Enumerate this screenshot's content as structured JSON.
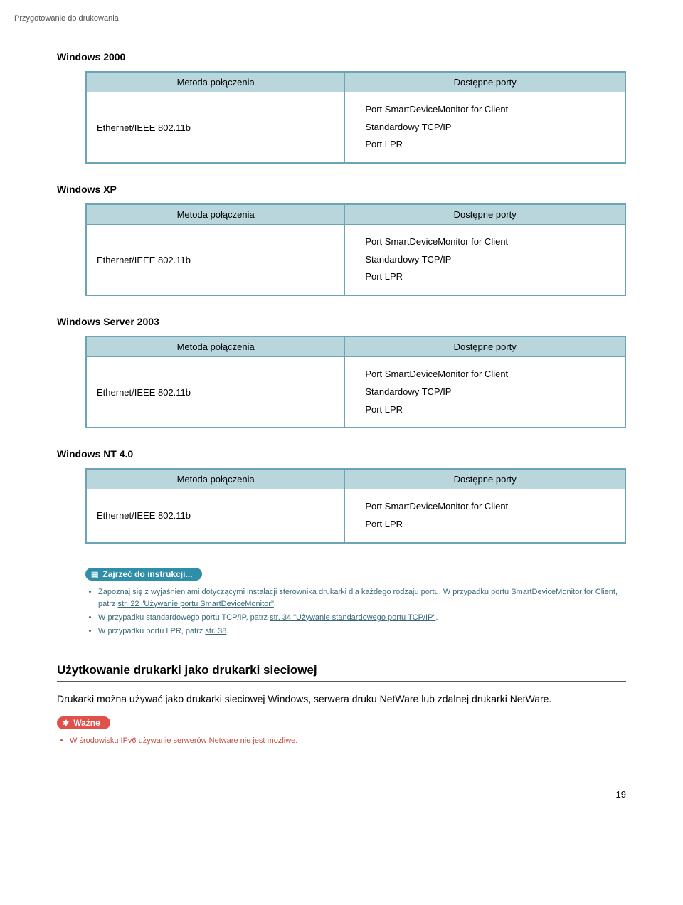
{
  "breadcrumb": "Przygotowanie do drukowania",
  "tables": [
    {
      "os": "Windows 2000",
      "col_method": "Metoda połączenia",
      "col_ports": "Dostępne porty",
      "method": "Ethernet/IEEE 802.11b",
      "ports": [
        "Port SmartDeviceMonitor for Client",
        "Standardowy TCP/IP",
        "Port LPR"
      ]
    },
    {
      "os": "Windows XP",
      "col_method": "Metoda połączenia",
      "col_ports": "Dostępne porty",
      "method": "Ethernet/IEEE 802.11b",
      "ports": [
        "Port SmartDeviceMonitor for Client",
        "Standardowy TCP/IP",
        "Port LPR"
      ]
    },
    {
      "os": "Windows Server 2003",
      "col_method": "Metoda połączenia",
      "col_ports": "Dostępne porty",
      "method": "Ethernet/IEEE 802.11b",
      "ports": [
        "Port SmartDeviceMonitor for Client",
        "Standardowy TCP/IP",
        "Port LPR"
      ]
    },
    {
      "os": "Windows NT 4.0",
      "col_method": "Metoda połączenia",
      "col_ports": "Dostępne porty",
      "method": "Ethernet/IEEE 802.11b",
      "ports": [
        "Port SmartDeviceMonitor for Client",
        "Port LPR"
      ]
    }
  ],
  "reference": {
    "badge": "Zajrzeć do instrukcji...",
    "items": [
      {
        "prefix": "Zapoznaj się z wyjaśnieniami dotyczącymi instalacji sterownika drukarki dla każdego rodzaju portu. W przypadku portu SmartDeviceMonitor for Client, patrz ",
        "link": "str. 22 \"Używanie portu SmartDeviceMonitor\"",
        "suffix": "."
      },
      {
        "prefix": "W przypadku standardowego portu TCP/IP, patrz ",
        "link": "str. 34 \"Używanie standardowego portu TCP/IP\"",
        "suffix": "."
      },
      {
        "prefix": "W przypadku portu LPR, patrz ",
        "link": "str. 38",
        "suffix": "."
      }
    ]
  },
  "section": {
    "heading": "Użytkowanie drukarki jako drukarki sieciowej",
    "body": "Drukarki można używać jako drukarki sieciowej Windows, serwera druku NetWare lub zdalnej drukarki NetWare.",
    "warn_badge": "Ważne",
    "warn_item": "W środowisku IPv6 używanie serwerów Netware nie jest możliwe."
  },
  "page_number": "19"
}
